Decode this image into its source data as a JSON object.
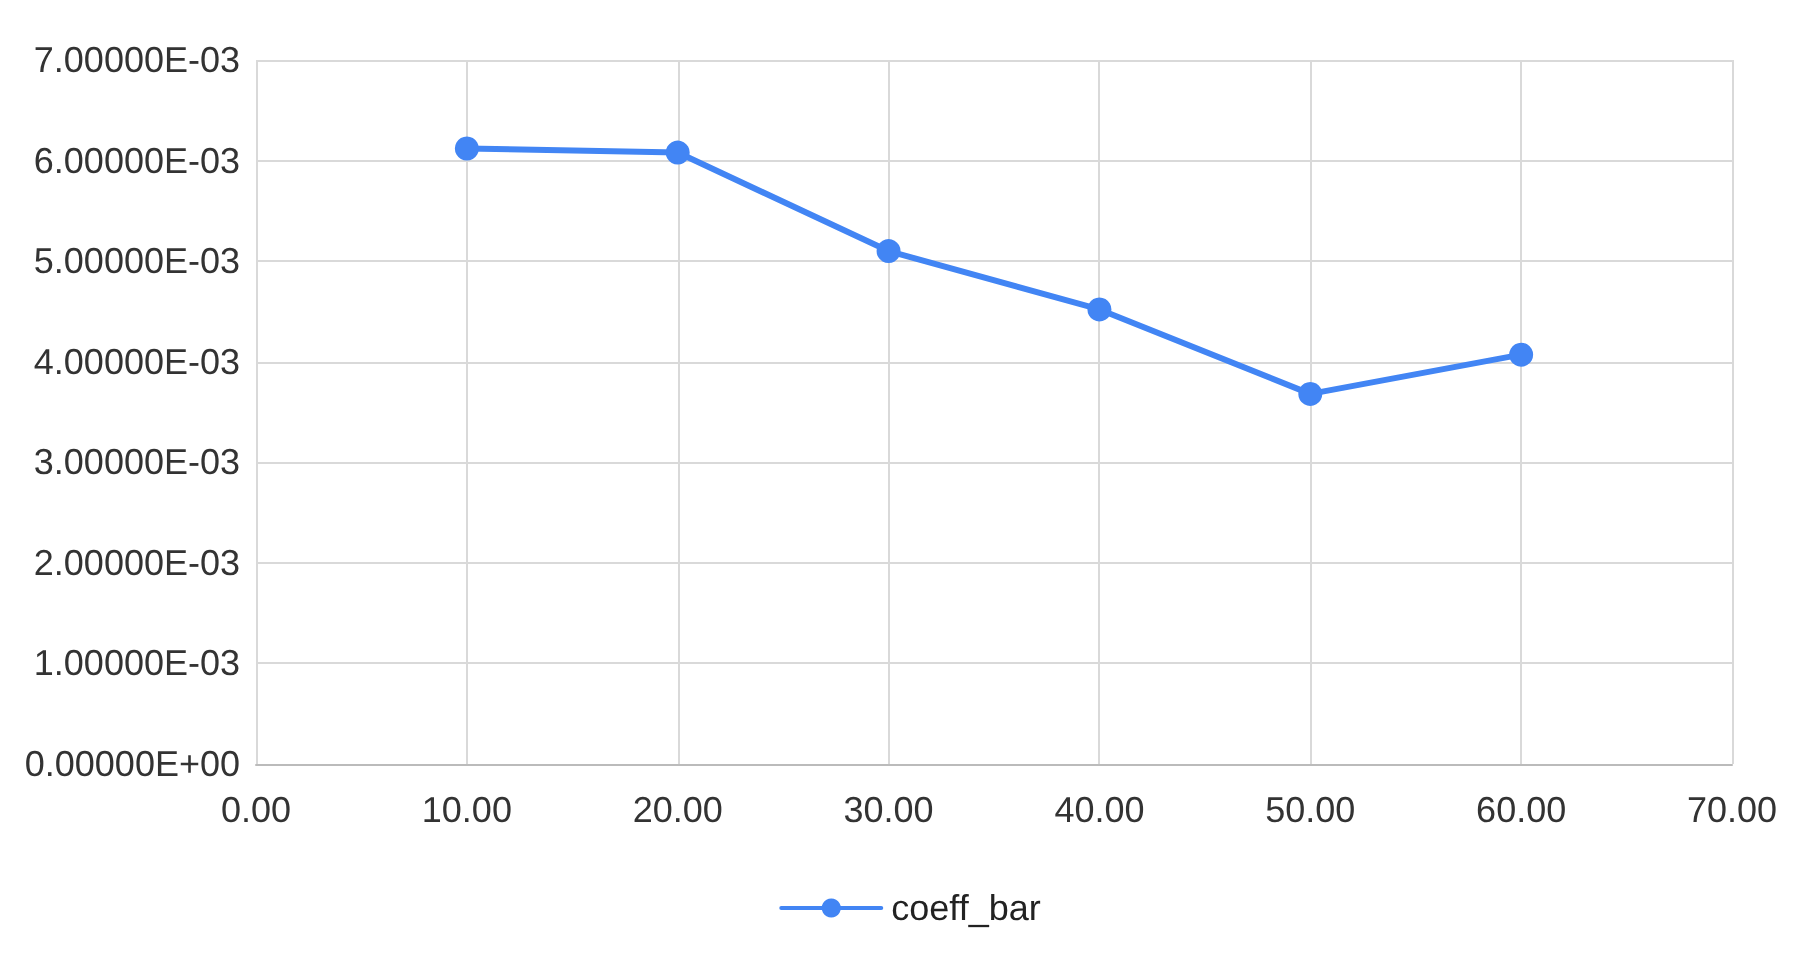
{
  "chart_data": {
    "type": "line",
    "x": [
      10,
      20,
      30,
      40,
      50,
      60
    ],
    "series": [
      {
        "name": "coeff_bar",
        "color": "#4285f4",
        "values": [
          0.00612,
          0.00608,
          0.0051,
          0.00452,
          0.00368,
          0.00407
        ]
      }
    ],
    "xlim": [
      0,
      70
    ],
    "xticks": [
      {
        "value": 0,
        "label": "0.00"
      },
      {
        "value": 10,
        "label": "10.00"
      },
      {
        "value": 20,
        "label": "20.00"
      },
      {
        "value": 30,
        "label": "30.00"
      },
      {
        "value": 40,
        "label": "40.00"
      },
      {
        "value": 50,
        "label": "50.00"
      },
      {
        "value": 60,
        "label": "60.00"
      },
      {
        "value": 70,
        "label": "70.00"
      }
    ],
    "ylim": [
      0,
      0.007
    ],
    "yticks": [
      {
        "value": 0,
        "label": "0.00000E+00"
      },
      {
        "value": 0.001,
        "label": "1.00000E-03"
      },
      {
        "value": 0.002,
        "label": "2.00000E-03"
      },
      {
        "value": 0.003,
        "label": "3.00000E-03"
      },
      {
        "value": 0.004,
        "label": "4.00000E-03"
      },
      {
        "value": 0.005,
        "label": "5.00000E-03"
      },
      {
        "value": 0.006,
        "label": "6.00000E-03"
      },
      {
        "value": 0.007,
        "label": "7.00000E-03"
      }
    ],
    "grid": true,
    "legend": "bottom",
    "marker": "circle",
    "line_style": "solid"
  }
}
